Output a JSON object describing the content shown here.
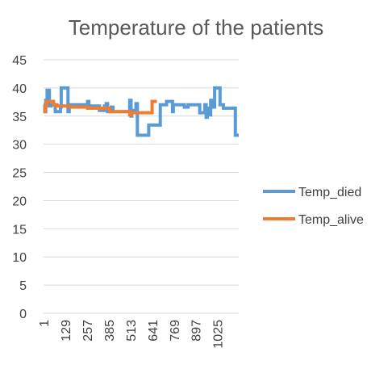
{
  "chart_data": {
    "type": "line",
    "title": "Temperature of the patients",
    "xlabel": "",
    "ylabel": "",
    "ylim": [
      0,
      45
    ],
    "yticks": [
      0,
      5,
      10,
      15,
      20,
      25,
      30,
      35,
      40,
      45
    ],
    "xlim": [
      1,
      1150
    ],
    "xticks": [
      1,
      129,
      257,
      385,
      513,
      641,
      769,
      897,
      1025
    ],
    "grid": true,
    "legend": "right",
    "series": [
      {
        "name": "Temp_died",
        "color": "#5b9bd5",
        "points": [
          [
            1,
            37
          ],
          [
            8,
            37
          ],
          [
            8,
            35.8
          ],
          [
            14,
            35.8
          ],
          [
            14,
            37.8
          ],
          [
            22,
            37.8
          ],
          [
            22,
            39.6
          ],
          [
            35,
            39.6
          ],
          [
            35,
            36.8
          ],
          [
            45,
            36.8
          ],
          [
            45,
            37
          ],
          [
            70,
            37
          ],
          [
            70,
            35.8
          ],
          [
            100,
            35.8
          ],
          [
            100,
            36.6
          ],
          [
            105,
            36.6
          ],
          [
            105,
            40
          ],
          [
            145,
            40
          ],
          [
            145,
            35.8
          ],
          [
            152,
            35.8
          ],
          [
            152,
            37
          ],
          [
            260,
            37
          ],
          [
            260,
            37.6
          ],
          [
            268,
            37.6
          ],
          [
            268,
            36.8
          ],
          [
            330,
            36.8
          ],
          [
            330,
            36
          ],
          [
            360,
            36
          ],
          [
            360,
            36.8
          ],
          [
            370,
            36.8
          ],
          [
            370,
            37.2
          ],
          [
            378,
            37.2
          ],
          [
            378,
            35.8
          ],
          [
            400,
            35.8
          ],
          [
            400,
            36.6
          ],
          [
            410,
            36.6
          ],
          [
            410,
            35.8
          ],
          [
            508,
            35.8
          ],
          [
            508,
            37.8
          ],
          [
            516,
            37.8
          ],
          [
            516,
            35
          ],
          [
            520,
            35
          ],
          [
            520,
            36
          ],
          [
            545,
            36
          ],
          [
            545,
            37.2
          ],
          [
            553,
            37.2
          ],
          [
            553,
            31.6
          ],
          [
            620,
            31.6
          ],
          [
            620,
            33.4
          ],
          [
            688,
            33.4
          ],
          [
            688,
            37
          ],
          [
            725,
            37
          ],
          [
            725,
            37.6
          ],
          [
            760,
            37.6
          ],
          [
            760,
            35.8
          ],
          [
            765,
            35.8
          ],
          [
            765,
            37
          ],
          [
            830,
            37
          ],
          [
            830,
            36.6
          ],
          [
            852,
            36.6
          ],
          [
            852,
            37
          ],
          [
            920,
            37
          ],
          [
            920,
            35.6
          ],
          [
            950,
            35.6
          ],
          [
            950,
            37
          ],
          [
            958,
            37
          ],
          [
            958,
            34.8
          ],
          [
            965,
            34.8
          ],
          [
            965,
            36.4
          ],
          [
            975,
            36.4
          ],
          [
            975,
            35.2
          ],
          [
            985,
            35.2
          ],
          [
            985,
            37.8
          ],
          [
            998,
            37.8
          ],
          [
            998,
            36.6
          ],
          [
            1008,
            36.6
          ],
          [
            1008,
            40
          ],
          [
            1040,
            40
          ],
          [
            1040,
            37
          ],
          [
            1060,
            37
          ],
          [
            1060,
            36.4
          ],
          [
            1130,
            36.4
          ],
          [
            1130,
            31.6
          ],
          [
            1150,
            31.6
          ]
        ]
      },
      {
        "name": "Temp_alive",
        "color": "#ed7d31",
        "points": [
          [
            1,
            35.8
          ],
          [
            10,
            35.8
          ],
          [
            10,
            36.8
          ],
          [
            18,
            36.8
          ],
          [
            18,
            37.6
          ],
          [
            60,
            37.6
          ],
          [
            60,
            37
          ],
          [
            80,
            37
          ],
          [
            80,
            36.8
          ],
          [
            155,
            36.8
          ],
          [
            155,
            36.6
          ],
          [
            260,
            36.6
          ],
          [
            260,
            36.4
          ],
          [
            390,
            36.4
          ],
          [
            390,
            35.8
          ],
          [
            508,
            35.8
          ],
          [
            508,
            35.2
          ],
          [
            518,
            35.2
          ],
          [
            518,
            35.6
          ],
          [
            640,
            35.6
          ],
          [
            640,
            37.6
          ],
          [
            668,
            37.6
          ]
        ]
      }
    ]
  }
}
